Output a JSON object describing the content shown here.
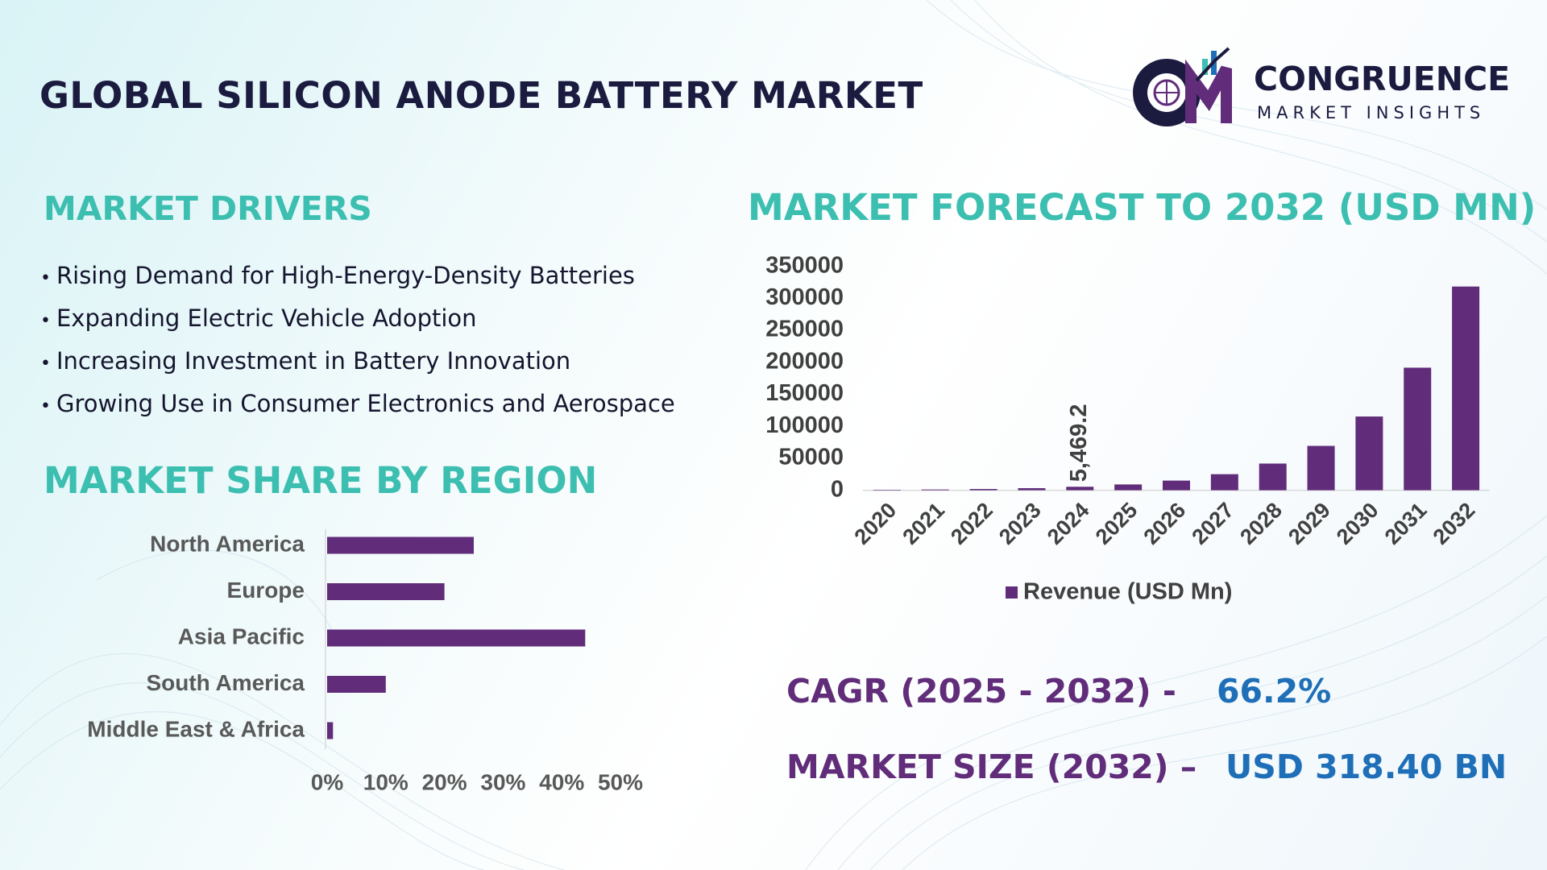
{
  "header": {
    "title": "GLOBAL SILICON ANODE BATTERY MARKET",
    "logo_name": "CONGRUENCE",
    "logo_tagline": "MARKET INSIGHTS"
  },
  "drivers": {
    "title": "MARKET DRIVERS",
    "items": [
      "Rising Demand for High-Energy-Density Batteries",
      "Expanding Electric Vehicle Adoption",
      "Increasing Investment in Battery Innovation",
      "Growing Use in Consumer Electronics and Aerospace"
    ]
  },
  "cagr": {
    "label": "CAGR (2025 - 2032) -",
    "value": "66.2%"
  },
  "market_size": {
    "label": "MARKET SIZE (2032) –",
    "value": "USD 318.40 BN"
  },
  "chart_data": [
    {
      "type": "bar",
      "orientation": "horizontal",
      "title": "MARKET SHARE BY REGION",
      "categories": [
        "North America",
        "Europe",
        "Asia Pacific",
        "South America",
        "Middle East & Africa"
      ],
      "values": [
        25,
        20,
        44,
        10,
        1
      ],
      "color": "#612d7a",
      "xlim": [
        0,
        50
      ],
      "xticks": [
        {
          "value": 0,
          "label": "0%"
        },
        {
          "value": 10,
          "label": "10%"
        },
        {
          "value": 20,
          "label": "20%"
        },
        {
          "value": 30,
          "label": "30%"
        },
        {
          "value": 40,
          "label": "40%"
        },
        {
          "value": 50,
          "label": "50%"
        }
      ]
    },
    {
      "type": "bar",
      "orientation": "vertical",
      "title": "MARKET FORECAST TO 2032 (USD MN)",
      "categories": [
        "2020",
        "2021",
        "2022",
        "2023",
        "2024",
        "2025",
        "2026",
        "2027",
        "2028",
        "2029",
        "2030",
        "2031",
        "2032"
      ],
      "series": [
        {
          "name": "Revenue (USD Mn)",
          "color": "#612d7a",
          "values": [
            750,
            1200,
            2000,
            3300,
            5469.2,
            9090,
            15107,
            25108,
            41730,
            69355,
            115268,
            191576,
            318400
          ],
          "value_labels": [
            null,
            null,
            null,
            null,
            "5,469.2",
            null,
            null,
            null,
            null,
            null,
            null,
            null,
            null
          ]
        }
      ],
      "ylim": [
        0,
        350000
      ],
      "yticks": [
        0,
        50000,
        100000,
        150000,
        200000,
        250000,
        300000,
        350000
      ],
      "legend": "bottom"
    }
  ]
}
